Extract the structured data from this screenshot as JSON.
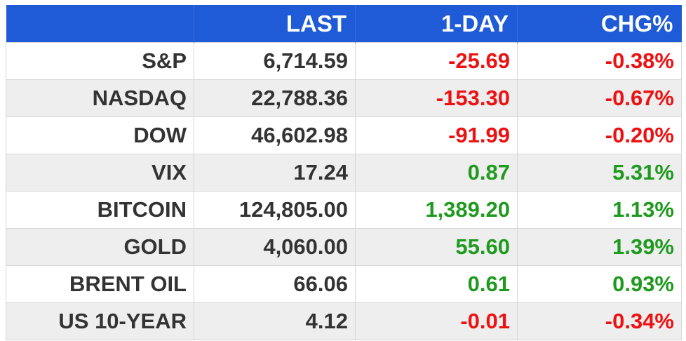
{
  "header": {
    "columns": [
      "",
      "LAST",
      "1-DAY",
      "CHG%"
    ]
  },
  "colors": {
    "header_bg": "#1f5bd6",
    "negative": "#ee1111",
    "positive": "#1e9a1e",
    "stripe": "#eeeeee"
  },
  "rows": [
    {
      "name": "S&P",
      "last": "6,714.59",
      "day": "-25.69",
      "chg": "-0.38%",
      "dir": "neg"
    },
    {
      "name": "NASDAQ",
      "last": "22,788.36",
      "day": "-153.30",
      "chg": "-0.67%",
      "dir": "neg"
    },
    {
      "name": "DOW",
      "last": "46,602.98",
      "day": "-91.99",
      "chg": "-0.20%",
      "dir": "neg"
    },
    {
      "name": "VIX",
      "last": "17.24",
      "day": "0.87",
      "chg": "5.31%",
      "dir": "pos"
    },
    {
      "name": "BITCOIN",
      "last": "124,805.00",
      "day": "1,389.20",
      "chg": "1.13%",
      "dir": "pos"
    },
    {
      "name": "GOLD",
      "last": "4,060.00",
      "day": "55.60",
      "chg": "1.39%",
      "dir": "pos"
    },
    {
      "name": "BRENT OIL",
      "last": "66.06",
      "day": "0.61",
      "chg": "0.93%",
      "dir": "pos"
    },
    {
      "name": "US 10-YEAR",
      "last": "4.12",
      "day": "-0.01",
      "chg": "-0.34%",
      "dir": "neg"
    }
  ]
}
